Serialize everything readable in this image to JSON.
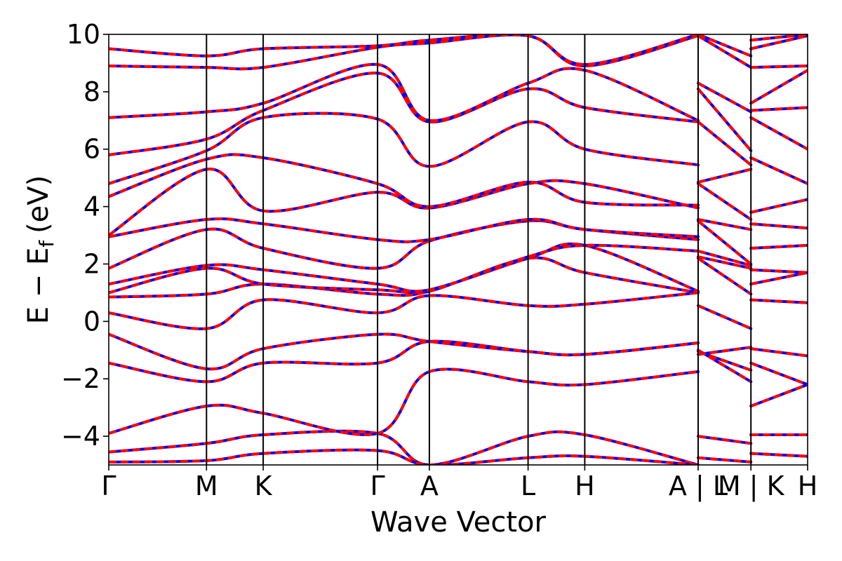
{
  "chart_data": {
    "type": "line",
    "xlabel": "Wave Vector",
    "ylabel_main": "E − E",
    "ylabel_sub": "f",
    "ylabel_unit": "(eV)",
    "ylim": [
      -5,
      10
    ],
    "y_ticks": [
      10,
      8,
      6,
      4,
      2,
      0,
      -2,
      -4
    ],
    "y_tick_labels": [
      "10",
      "8",
      "6",
      "4",
      "2",
      "0",
      "−2",
      "−4"
    ],
    "k_path": [
      {
        "label": "Γ",
        "k": 0.0
      },
      {
        "label": "M",
        "k": 1.0
      },
      {
        "label": "K",
        "k": 1.58
      },
      {
        "label": "Γ",
        "k": 2.75
      },
      {
        "label": "A",
        "k": 3.28
      },
      {
        "label": "L",
        "k": 4.29
      },
      {
        "label": "H",
        "k": 4.87
      },
      {
        "label": "A | L",
        "k": 6.03
      },
      {
        "label": "M | K",
        "k": 6.57
      },
      {
        "label": "H",
        "k": 7.15
      }
    ],
    "xlim": [
      0,
      7.15
    ],
    "series_colors": {
      "band_solid": "#ff0000",
      "band_dashed": "#0000ff"
    },
    "segments": [
      {
        "k": [
          0.0,
          1.0,
          1.58,
          2.75,
          3.28,
          4.29,
          4.87,
          6.03
        ],
        "bands": [
          [
            -4.55,
            -4.25,
            -3.95,
            -3.9,
            -5.0,
            -4.0,
            -3.95,
            -5.0
          ],
          [
            -4.9,
            -4.85,
            -4.6,
            -4.5,
            -5.0,
            -4.75,
            -4.7,
            -5.0
          ],
          [
            -3.9,
            -2.95,
            -3.2,
            -3.9,
            -1.75,
            -2.1,
            -2.2,
            -1.75
          ],
          [
            -1.45,
            -2.1,
            -1.45,
            -1.45,
            -0.7,
            -1.05,
            -1.15,
            -0.75
          ],
          [
            -0.45,
            -1.65,
            -0.95,
            -0.45,
            -0.7,
            -1.05,
            -1.15,
            -0.75
          ],
          [
            0.3,
            -0.25,
            0.75,
            0.3,
            0.9,
            0.55,
            0.6,
            1.0
          ],
          [
            0.85,
            0.95,
            1.3,
            0.95,
            1.05,
            2.2,
            1.7,
            1.0
          ],
          [
            1.0,
            1.85,
            1.3,
            1.1,
            1.1,
            2.2,
            2.65,
            1.05
          ],
          [
            1.3,
            1.95,
            1.8,
            1.3,
            1.1,
            2.25,
            2.65,
            2.45
          ],
          [
            1.85,
            3.2,
            2.55,
            1.85,
            2.8,
            3.5,
            3.2,
            2.85
          ],
          [
            2.95,
            3.55,
            3.4,
            2.85,
            2.85,
            3.55,
            3.2,
            2.95
          ],
          [
            3.0,
            5.3,
            3.85,
            4.5,
            3.95,
            4.8,
            4.8,
            3.95
          ],
          [
            4.35,
            5.65,
            5.7,
            4.8,
            4.0,
            4.85,
            4.15,
            4.05
          ],
          [
            4.8,
            5.95,
            7.1,
            7.05,
            5.4,
            6.95,
            6.0,
            5.45
          ],
          [
            5.8,
            6.35,
            7.35,
            8.65,
            6.95,
            8.1,
            7.45,
            6.95
          ],
          [
            7.1,
            7.3,
            7.6,
            8.95,
            7.0,
            8.3,
            8.75,
            7.0
          ],
          [
            8.9,
            8.85,
            8.85,
            9.55,
            9.7,
            9.95,
            8.9,
            9.95
          ],
          [
            9.5,
            9.25,
            9.5,
            9.6,
            9.8,
            9.95,
            8.95,
            10.0
          ]
        ]
      },
      {
        "k": [
          6.03,
          6.57
        ],
        "bands": [
          [
            -4.0,
            -4.25
          ],
          [
            -4.75,
            -4.9
          ],
          [
            -1.0,
            -2.1
          ],
          [
            -1.05,
            -1.7
          ],
          [
            -1.15,
            -0.9
          ],
          [
            0.55,
            -0.25
          ],
          [
            2.2,
            0.95
          ],
          [
            2.25,
            1.85
          ],
          [
            2.45,
            1.95
          ],
          [
            3.5,
            2.0
          ],
          [
            3.55,
            3.2
          ],
          [
            4.8,
            3.55
          ],
          [
            4.85,
            5.3
          ],
          [
            6.95,
            5.45
          ],
          [
            8.1,
            5.95
          ],
          [
            8.3,
            7.3
          ],
          [
            9.95,
            8.85
          ],
          [
            10.0,
            9.25
          ]
        ]
      },
      {
        "k": [
          6.57,
          7.15
        ],
        "bands": [
          [
            -3.95,
            -3.95
          ],
          [
            -4.6,
            -4.7
          ],
          [
            -2.95,
            -2.2
          ],
          [
            -1.45,
            -2.2
          ],
          [
            -0.95,
            -1.2
          ],
          [
            0.75,
            0.65
          ],
          [
            1.3,
            1.7
          ],
          [
            1.8,
            1.7
          ],
          [
            2.55,
            2.65
          ],
          [
            3.4,
            3.25
          ],
          [
            3.8,
            4.25
          ],
          [
            5.7,
            4.8
          ],
          [
            7.1,
            6.0
          ],
          [
            7.35,
            7.45
          ],
          [
            7.6,
            8.75
          ],
          [
            8.85,
            8.9
          ],
          [
            9.5,
            9.95
          ],
          [
            9.8,
            10.0
          ]
        ]
      }
    ]
  }
}
